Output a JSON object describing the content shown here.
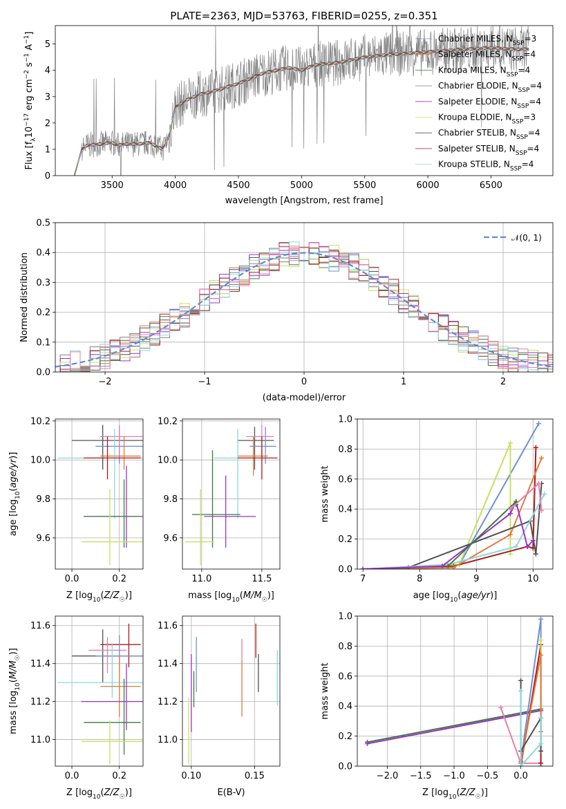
{
  "title": "PLATE=2363, MJD=53763, FIBERID=0255, z=0.351",
  "colors": {
    "Chabrier MILES": "#6f8fd6",
    "Salpeter MILES": "#e07b39",
    "Kroupa MILES": "#3a7a3a",
    "Chabrier ELODIE": "#808080",
    "Salpeter ELODIE": "#9b30c9",
    "Kroupa ELODIE": "#c8e05a",
    "Chabrier STELIB": "#505050",
    "Salpeter STELIB": "#b01818",
    "Kroupa STELIB": "#88d8e0",
    "extra_pink": "#e87cb0"
  },
  "chart_data": [
    {
      "id": "spectrum",
      "type": "line",
      "xlabel": "wavelength [Angstrom, rest frame]",
      "ylabel": "Flux [f_λ10^-17 erg cm^-2 s^-1 A^-1]",
      "xlim": [
        3050,
        6990
      ],
      "ylim": [
        0,
        5.7
      ],
      "xticks": [
        3500,
        4000,
        4500,
        5000,
        5500,
        6000,
        6500
      ],
      "yticks": [
        0,
        1,
        2,
        3,
        4,
        5
      ],
      "grid": false,
      "legend_position": "top-right",
      "legend": [
        {
          "name": "Chabrier MILES",
          "nssp": "3"
        },
        {
          "name": "Salpeter MILES",
          "nssp": "4"
        },
        {
          "name": "Kroupa MILES",
          "nssp": "4"
        },
        {
          "name": "Chabrier ELODIE",
          "nssp": "4"
        },
        {
          "name": "Salpeter ELODIE",
          "nssp": "4"
        },
        {
          "name": "Kroupa ELODIE",
          "nssp": "3"
        },
        {
          "name": "Chabrier STELIB",
          "nssp": "4"
        },
        {
          "name": "Salpeter STELIB",
          "nssp": "4"
        },
        {
          "name": "Kroupa STELIB",
          "nssp": "4"
        }
      ],
      "model_curve": {
        "x": [
          3200,
          3260,
          3300,
          3400,
          3500,
          3550,
          3600,
          3700,
          3800,
          3900,
          3950,
          4000,
          4100,
          4200,
          4300,
          4500,
          4700,
          4900,
          5000,
          5100,
          5300,
          5500,
          5700,
          6000,
          6300,
          6500,
          6700,
          6800
        ],
        "y": [
          0.0,
          1.0,
          1.15,
          1.2,
          1.25,
          1.15,
          1.2,
          1.2,
          1.25,
          1.0,
          1.5,
          2.6,
          2.9,
          3.1,
          3.2,
          3.5,
          3.9,
          4.1,
          4.0,
          4.2,
          4.3,
          4.5,
          4.6,
          4.7,
          4.8,
          4.85,
          4.8,
          4.8
        ]
      }
    },
    {
      "id": "residuals",
      "type": "line",
      "xlabel": "(data-model)/error",
      "ylabel": "Normed distribution",
      "xlim": [
        -2.5,
        2.5
      ],
      "ylim": [
        0,
        0.5
      ],
      "xticks": [
        -2,
        -1,
        0,
        1,
        2
      ],
      "xtick_labels": [
        "−2",
        "−1",
        "0",
        "1",
        "2"
      ],
      "yticks": [
        0.0,
        0.1,
        0.2,
        0.3,
        0.4,
        0.5
      ],
      "ytick_labels": [
        "0.0",
        "0.1",
        "0.2",
        "0.3",
        "0.4",
        "0.5"
      ],
      "grid": true,
      "legend": [
        {
          "name": "𝒩(0, 1)",
          "style": "dashed"
        }
      ],
      "legend_position": "top-right",
      "gaussian": {
        "mean": 0,
        "sigma": 1
      }
    },
    {
      "id": "age-vs-Z",
      "type": "scatter",
      "xlabel": "Z [log10(Z/Z☉)]",
      "ylabel": "age  [log10(age/yr)]",
      "xlim": [
        -0.07,
        0.3
      ],
      "ylim": [
        9.44,
        10.21
      ],
      "xticks": [
        0.0,
        0.2
      ],
      "xtick_labels": [
        "0.0",
        "0.2"
      ],
      "yticks": [
        9.6,
        9.8,
        10.0,
        10.2
      ],
      "ytick_labels": [
        "9.6",
        "9.8",
        "10.0",
        "10.2"
      ],
      "grid": true,
      "points": [
        {
          "c": "#505050",
          "x": 0.13,
          "y": 10.1,
          "xe": [
            0.0,
            0.3
          ],
          "ye": [
            9.95,
            10.18
          ]
        },
        {
          "c": "#6f8fd6",
          "x": 0.2,
          "y": 10.07,
          "xe": [
            0.1,
            0.3
          ],
          "ye": [
            9.98,
            10.17
          ]
        },
        {
          "c": "#e87cb0",
          "x": 0.2,
          "y": 10.12,
          "xe": [
            0.12,
            0.3
          ],
          "ye": [
            10.02,
            10.18
          ]
        },
        {
          "c": "#e07b39",
          "x": 0.22,
          "y": 10.02,
          "xe": [
            0.12,
            0.29
          ],
          "ye": [
            9.95,
            10.12
          ]
        },
        {
          "c": "#88d8e0",
          "x": 0.18,
          "y": 10.01,
          "xe": [
            -0.06,
            0.3
          ],
          "ye": [
            9.7,
            10.16
          ]
        },
        {
          "c": "#b01818",
          "x": 0.15,
          "y": 10.01,
          "xe": [
            0.05,
            0.29
          ],
          "ye": [
            9.9,
            10.12
          ]
        },
        {
          "c": "#9b30c9",
          "x": 0.23,
          "y": 9.71,
          "xe": [
            0.05,
            0.3
          ],
          "ye": [
            9.55,
            9.97
          ]
        },
        {
          "c": "#3a7a3a",
          "x": 0.22,
          "y": 9.71,
          "xe": [
            0.05,
            0.29
          ],
          "ye": [
            9.55,
            9.9
          ]
        },
        {
          "c": "#c8e05a",
          "x": 0.16,
          "y": 9.58,
          "xe": [
            0.04,
            0.3
          ],
          "ye": [
            9.46,
            9.85
          ]
        }
      ]
    },
    {
      "id": "age-vs-mass",
      "type": "scatter",
      "xlabel": "mass [log10(M/M☉)]",
      "xlim": [
        10.84,
        11.65
      ],
      "ylim": [
        9.44,
        10.21
      ],
      "xticks": [
        11.0,
        11.5
      ],
      "xtick_labels": [
        "11.0",
        "11.5"
      ],
      "yticks": [
        9.6,
        9.8,
        10.0,
        10.2
      ],
      "ytick_labels": [
        "9.6",
        "9.8",
        "10.0",
        "10.2"
      ],
      "grid": true,
      "points": [
        {
          "c": "#505050",
          "x": 11.44,
          "y": 10.1,
          "xe": [
            11.3,
            11.6
          ],
          "ye": [
            9.95,
            10.17
          ]
        },
        {
          "c": "#6f8fd6",
          "x": 11.53,
          "y": 10.07,
          "xe": [
            11.4,
            11.62
          ],
          "ye": [
            9.98,
            10.17
          ]
        },
        {
          "c": "#e87cb0",
          "x": 11.5,
          "y": 10.12,
          "xe": [
            11.37,
            11.6
          ],
          "ye": [
            10.02,
            10.18
          ]
        },
        {
          "c": "#e07b39",
          "x": 11.43,
          "y": 10.02,
          "xe": [
            11.3,
            11.55
          ],
          "ye": [
            9.92,
            10.12
          ]
        },
        {
          "c": "#88d8e0",
          "x": 11.3,
          "y": 10.01,
          "xe": [
            11.1,
            11.45
          ],
          "ye": [
            9.7,
            10.16
          ]
        },
        {
          "c": "#b01818",
          "x": 11.5,
          "y": 10.01,
          "xe": [
            11.3,
            11.63
          ],
          "ye": [
            9.9,
            10.12
          ]
        },
        {
          "c": "#9b30c9",
          "x": 11.2,
          "y": 9.71,
          "xe": [
            11.02,
            11.45
          ],
          "ye": [
            9.55,
            9.92
          ]
        },
        {
          "c": "#3a7a3a",
          "x": 11.09,
          "y": 9.72,
          "xe": [
            10.92,
            11.32
          ],
          "ye": [
            9.55,
            10.05
          ]
        },
        {
          "c": "#c8e05a",
          "x": 10.99,
          "y": 9.58,
          "xe": [
            10.86,
            11.1
          ],
          "ye": [
            9.46,
            9.85
          ]
        }
      ]
    },
    {
      "id": "weight-vs-age",
      "type": "line",
      "xlabel": "age  [log10(age/yr)]",
      "ylabel": "mass weight",
      "xlim": [
        6.9,
        10.35
      ],
      "ylim": [
        0.0,
        1.0
      ],
      "xticks": [
        7,
        8,
        9,
        10
      ],
      "xtick_labels": [
        "7",
        "8",
        "9",
        "10"
      ],
      "yticks": [
        0.0,
        0.2,
        0.4,
        0.6,
        0.8,
        1.0
      ],
      "ytick_labels": [
        "0.0",
        "0.2",
        "0.4",
        "0.6",
        "0.8",
        "1.0"
      ],
      "grid": true,
      "series": [
        {
          "c": "#6f8fd6",
          "x": [
            7.0,
            8.7,
            10.1
          ],
          "y": [
            0.0,
            0.03,
            0.97
          ]
        },
        {
          "c": "#c8e05a",
          "x": [
            7.0,
            8.7,
            9.6,
            9.6
          ],
          "y": [
            0.0,
            0.03,
            0.84,
            0.1
          ]
        },
        {
          "c": "#b01818",
          "x": [
            7.0,
            8.6,
            9.9,
            10.0,
            10.05
          ],
          "y": [
            0.0,
            0.02,
            0.15,
            0.14,
            0.81
          ]
        },
        {
          "c": "#e07b39",
          "x": [
            7.0,
            8.6,
            9.6,
            10.15
          ],
          "y": [
            0.0,
            0.01,
            0.23,
            0.74
          ]
        },
        {
          "c": "#505050",
          "x": [
            7.0,
            7.8,
            9.95,
            10.05,
            10.15
          ],
          "y": [
            0.0,
            0.01,
            0.32,
            0.1,
            0.57
          ]
        },
        {
          "c": "#88d8e0",
          "x": [
            7.0,
            8.5,
            9.7,
            10.2
          ],
          "y": [
            0.0,
            0.03,
            0.15,
            0.5
          ]
        },
        {
          "c": "#9b30c9",
          "x": [
            7.0,
            8.4,
            9.6,
            9.7,
            9.9,
            10.0
          ],
          "y": [
            0.0,
            0.02,
            0.37,
            0.45,
            0.15,
            0.19
          ]
        },
        {
          "c": "#3a7a3a",
          "x": [
            8.5,
            9.7,
            9.7
          ],
          "y": [
            0.02,
            0.45,
            0.43
          ]
        },
        {
          "c": "#e87cb0",
          "x": [
            9.6,
            10.1,
            10.15
          ],
          "y": [
            0.4,
            0.57,
            0.39
          ]
        }
      ]
    },
    {
      "id": "mass-vs-Z",
      "type": "scatter",
      "xlabel": "Z [log10(Z/Z☉)]",
      "ylabel": "mass [log10(M/M☉)]",
      "xlim": [
        -0.07,
        0.3
      ],
      "ylim": [
        10.86,
        11.65
      ],
      "xticks": [
        0.0,
        0.2
      ],
      "xtick_labels": [
        "0.0",
        "0.2"
      ],
      "yticks": [
        11.0,
        11.2,
        11.4,
        11.6
      ],
      "ytick_labels": [
        "11.0",
        "11.2",
        "11.4",
        "11.6"
      ],
      "grid": true,
      "points": [
        {
          "c": "#505050",
          "x": 0.13,
          "y": 11.44,
          "xe": [
            0.0,
            0.3
          ],
          "ye": [
            11.3,
            11.58
          ]
        },
        {
          "c": "#b01818",
          "x": 0.24,
          "y": 11.5,
          "xe": [
            0.12,
            0.29
          ],
          "ye": [
            11.38,
            11.61
          ]
        },
        {
          "c": "#e87cb0",
          "x": 0.15,
          "y": 11.47,
          "xe": [
            0.07,
            0.23
          ],
          "ye": [
            11.35,
            11.54
          ]
        },
        {
          "c": "#6f8fd6",
          "x": 0.2,
          "y": 11.44,
          "xe": [
            0.1,
            0.3
          ],
          "ye": [
            11.35,
            11.55
          ]
        },
        {
          "c": "#88d8e0",
          "x": 0.17,
          "y": 11.3,
          "xe": [
            -0.06,
            0.3
          ],
          "ye": [
            11.22,
            11.5
          ]
        },
        {
          "c": "#e07b39",
          "x": 0.2,
          "y": 11.28,
          "xe": [
            0.12,
            0.29
          ],
          "ye": [
            11.12,
            11.44
          ]
        },
        {
          "c": "#9b30c9",
          "x": 0.23,
          "y": 11.2,
          "xe": [
            0.04,
            0.3
          ],
          "ye": [
            11.05,
            11.4
          ]
        },
        {
          "c": "#3a7a3a",
          "x": 0.22,
          "y": 11.09,
          "xe": [
            0.05,
            0.29
          ],
          "ye": [
            10.92,
            11.32
          ]
        },
        {
          "c": "#c8e05a",
          "x": 0.16,
          "y": 10.99,
          "xe": [
            0.04,
            0.3
          ],
          "ye": [
            10.87,
            11.1
          ]
        }
      ]
    },
    {
      "id": "mass-vs-ebv",
      "type": "scatter",
      "xlabel": "E(B-V)",
      "xlim": [
        0.093,
        0.17
      ],
      "ylim": [
        10.86,
        11.65
      ],
      "xticks": [
        0.1,
        0.15
      ],
      "xtick_labels": [
        "0.10",
        "0.15"
      ],
      "yticks": [
        11.0,
        11.2,
        11.4,
        11.6
      ],
      "ytick_labels": [
        "11.0",
        "11.2",
        "11.4",
        "11.6"
      ],
      "grid": true,
      "points": [
        {
          "c": "#c8e05a",
          "x": 0.098,
          "ye": [
            10.87,
            11.22
          ]
        },
        {
          "c": "#9b30c9",
          "x": 0.1,
          "ye": [
            11.04,
            11.45
          ]
        },
        {
          "c": "#3a7a3a",
          "x": 0.102,
          "ye": [
            11.17,
            11.36
          ]
        },
        {
          "c": "#6f8fd6",
          "x": 0.104,
          "ye": [
            11.25,
            11.54
          ]
        },
        {
          "c": "#e07b39",
          "x": 0.14,
          "ye": [
            11.12,
            11.42
          ]
        },
        {
          "c": "#e87cb0",
          "x": 0.14,
          "ye": [
            11.42,
            11.53
          ]
        },
        {
          "c": "#b01818",
          "x": 0.151,
          "ye": [
            11.43,
            11.61
          ]
        },
        {
          "c": "#505050",
          "x": 0.153,
          "ye": [
            11.25,
            11.45
          ]
        },
        {
          "c": "#88d8e0",
          "x": 0.168,
          "ye": [
            11.18,
            11.47
          ]
        }
      ]
    },
    {
      "id": "weight-vs-Z",
      "type": "line",
      "xlabel": "Z [log10(Z/Z☉)]",
      "ylabel": "mass weight",
      "xlim": [
        -2.45,
        0.48
      ],
      "ylim": [
        0.0,
        1.0
      ],
      "xticks": [
        -2.0,
        -1.5,
        -1.0,
        -0.5,
        0.0
      ],
      "xtick_labels": [
        "−2.0",
        "−1.5",
        "−1.0",
        "−0.5",
        "0.0"
      ],
      "yticks": [
        0.0,
        0.2,
        0.4,
        0.6,
        0.8,
        1.0
      ],
      "ytick_labels": [
        "0.0",
        "0.2",
        "0.4",
        "0.6",
        "0.8",
        "1.0"
      ],
      "grid": true,
      "series": [
        {
          "c": "#3a7a3a",
          "x": [
            -2.3,
            0.3
          ],
          "y": [
            0.16,
            0.38
          ]
        },
        {
          "c": "#9b30c9",
          "x": [
            -2.3,
            0.3
          ],
          "y": [
            0.15,
            0.37
          ]
        },
        {
          "c": "#e87cb0",
          "x": [
            -0.3,
            0.0,
            0.3
          ],
          "y": [
            0.39,
            0.02,
            0.02
          ]
        },
        {
          "c": "#6f8fd6",
          "x": [
            0.0,
            0.3,
            0.3
          ],
          "y": [
            0.03,
            0.98,
            0.0
          ]
        },
        {
          "c": "#b01818",
          "x": [
            0.0,
            0.3,
            0.3
          ],
          "y": [
            0.0,
            0.81,
            0.02
          ]
        },
        {
          "c": "#c8e05a",
          "x": [
            0.3,
            0.3
          ],
          "y": [
            0.84,
            0.1
          ]
        },
        {
          "c": "#e07b39",
          "x": [
            0.0,
            0.3,
            0.3
          ],
          "y": [
            0.02,
            0.74,
            0.23
          ]
        },
        {
          "c": "#505050",
          "x": [
            0.0,
            0.0,
            0.3,
            0.3
          ],
          "y": [
            0.57,
            0.1,
            0.32,
            0.1
          ]
        },
        {
          "c": "#88d8e0",
          "x": [
            0.0,
            0.0,
            0.3,
            0.3
          ],
          "y": [
            0.5,
            0.0,
            0.15,
            0.32
          ]
        }
      ]
    }
  ]
}
